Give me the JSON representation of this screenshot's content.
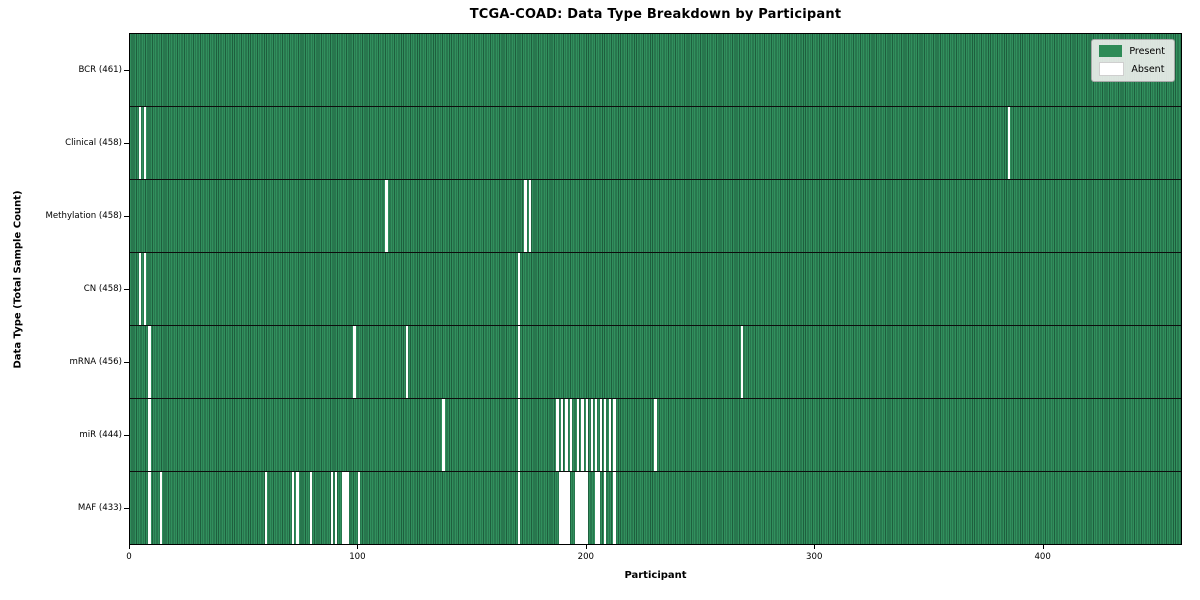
{
  "chart_data": {
    "type": "heatmap",
    "title": "TCGA-COAD: Data Type Breakdown by Participant",
    "xlabel": "Participant",
    "ylabel": "Data Type (Total Sample Count)",
    "x_ticks": [
      0,
      100,
      200,
      300,
      400
    ],
    "x_max": 461,
    "total_participants": 461,
    "legend": [
      {
        "label": "Present",
        "color": "#2e8b57"
      },
      {
        "label": "Absent",
        "color": "#ffffff"
      }
    ],
    "legend_position": "upper right",
    "colors": {
      "present": "#2e8b57",
      "present_edge": "#1e5f3e",
      "absent": "#ffffff",
      "legend_bg": "#eaeeea"
    },
    "rows": [
      {
        "label": "BCR (461)",
        "data_type": "BCR",
        "present_count": 461,
        "absent_participants": []
      },
      {
        "label": "Clinical (458)",
        "data_type": "Clinical",
        "present_count": 458,
        "absent_participants": [
          4,
          6,
          385
        ]
      },
      {
        "label": "Methylation (458)",
        "data_type": "Methylation",
        "present_count": 458,
        "absent_participants": [
          112,
          173,
          175
        ]
      },
      {
        "label": "CN (458)",
        "data_type": "CN",
        "present_count": 458,
        "absent_participants": [
          4,
          6,
          170
        ]
      },
      {
        "label": "mRNA (456)",
        "data_type": "mRNA",
        "present_count": 456,
        "absent_participants": [
          8,
          98,
          121,
          170,
          268
        ]
      },
      {
        "label": "miR (444)",
        "data_type": "miR",
        "present_count": 444,
        "absent_participants": [
          8,
          137,
          170,
          187,
          189,
          191,
          193,
          196,
          198,
          200,
          202,
          204,
          206,
          208,
          210,
          212,
          230
        ]
      },
      {
        "label": "MAF (433)",
        "data_type": "MAF",
        "present_count": 433,
        "absent_participants": [
          8,
          13,
          59,
          71,
          73,
          79,
          88,
          90,
          93,
          94,
          95,
          100,
          170,
          188,
          189,
          190,
          191,
          192,
          195,
          196,
          197,
          198,
          199,
          200,
          204,
          205,
          208,
          212
        ]
      }
    ]
  }
}
